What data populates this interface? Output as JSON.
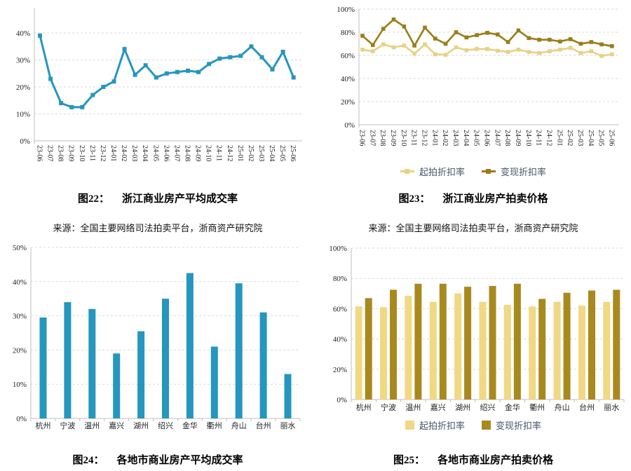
{
  "colors": {
    "teal": "#2596be",
    "light_gold_line": "#e8d183",
    "dark_gold_line": "#9a7d17",
    "light_gold_bar": "#f0d884",
    "dark_gold_bar": "#a8891e",
    "legend_text": "#44546a",
    "gridline": "#d9d9d9",
    "axis_line": "#bfbfbf"
  },
  "captions": {
    "fig22": {
      "label": "图22：",
      "title": "浙江商业房产平均成交率"
    },
    "fig23": {
      "label": "图23：",
      "title": "浙江商业房产拍卖价格"
    },
    "fig24": {
      "label": "图24：",
      "title": "各地市商业房产平均成交率"
    },
    "fig25": {
      "label": "图25：",
      "title": "各地市商业房产拍卖价格"
    }
  },
  "sources": {
    "left": "来源：全国主要网络司法拍卖平台，浙商资产研究院",
    "right": "来源：全国主要网络司法拍卖平台，浙商资产研究院"
  },
  "chart_data": [
    {
      "id": "fig22",
      "type": "line",
      "title": "图22：浙江商业房产平均成交率",
      "categories": [
        "23-06",
        "23-07",
        "23-08",
        "23-09",
        "23-10",
        "23-11",
        "23-12",
        "24-01",
        "24-02",
        "24-03",
        "24-04",
        "24-05",
        "24-06",
        "24-07",
        "24-08",
        "24-09",
        "24-10",
        "24-11",
        "24-12",
        "25-01",
        "25-02",
        "25-03",
        "25-04",
        "25-05",
        "25-06"
      ],
      "series": [
        {
          "name": "平均成交率",
          "color": "#2596be",
          "values": [
            39,
            23,
            14,
            12.5,
            12.5,
            17,
            20,
            22,
            34,
            24.5,
            28,
            23.5,
            25,
            25.5,
            26,
            25.5,
            28.5,
            30.5,
            31,
            31.5,
            35,
            31,
            26.5,
            33,
            23.5
          ]
        }
      ],
      "ylim": [
        0,
        45
      ],
      "yticks": [
        0,
        10,
        20,
        30,
        40
      ],
      "ytick_suffix": "%",
      "grid": "dashed-horizontal",
      "legend": null
    },
    {
      "id": "fig23",
      "type": "line",
      "title": "图23：浙江商业房产拍卖价格",
      "categories": [
        "23-06",
        "23-07",
        "23-08",
        "23-09",
        "23-10",
        "23-11",
        "23-12",
        "24-01",
        "24-02",
        "24-03",
        "24-04",
        "24-05",
        "24-06",
        "24-07",
        "24-08",
        "24-09",
        "24-10",
        "24-11",
        "24-12",
        "25-01",
        "25-02",
        "25-03",
        "25-04",
        "25-05",
        "25-06"
      ],
      "series": [
        {
          "name": "起拍折扣率",
          "color": "#e8d183",
          "values": [
            65,
            63.5,
            69.5,
            67,
            68.5,
            61.5,
            69.5,
            61,
            60.5,
            67,
            64.5,
            65.5,
            65.5,
            64,
            63,
            65,
            63,
            62,
            63.5,
            65,
            66.5,
            62,
            63.5,
            59.5,
            61
          ]
        },
        {
          "name": "变现折扣率",
          "color": "#9a7d17",
          "values": [
            77,
            69,
            83,
            91,
            85,
            68.5,
            84,
            74.5,
            70,
            80,
            75.5,
            77.5,
            79.5,
            78,
            71.5,
            81.5,
            75,
            73.5,
            73.5,
            72,
            74,
            70,
            71.5,
            69.5,
            68
          ]
        }
      ],
      "ylim": [
        0,
        100
      ],
      "yticks": [
        0,
        20,
        40,
        60,
        80,
        100
      ],
      "ytick_suffix": "%",
      "grid": "dashed-horizontal",
      "legend": "bottom"
    },
    {
      "id": "fig24",
      "type": "bar",
      "title": "图24：各地市商业房产平均成交率",
      "categories": [
        "杭州",
        "宁波",
        "温州",
        "嘉兴",
        "湖州",
        "绍兴",
        "金华",
        "衢州",
        "舟山",
        "台州",
        "丽水"
      ],
      "series": [
        {
          "name": "平均成交率",
          "color": "#2596be",
          "values": [
            29.5,
            34,
            32,
            19,
            25.5,
            35,
            42.5,
            21,
            39.5,
            31,
            13
          ]
        }
      ],
      "ylim": [
        0,
        50
      ],
      "yticks": [
        0,
        10,
        20,
        30,
        40,
        50
      ],
      "ytick_suffix": "%",
      "grid": "dashed-horizontal",
      "legend": null
    },
    {
      "id": "fig25",
      "type": "bar",
      "title": "图25：各地市商业房产拍卖价格",
      "categories": [
        "杭州",
        "宁波",
        "温州",
        "嘉兴",
        "湖州",
        "绍兴",
        "金华",
        "衢州",
        "舟山",
        "台州",
        "丽水"
      ],
      "series": [
        {
          "name": "起拍折扣率",
          "color": "#f0d884",
          "values": [
            61.5,
            61,
            68.5,
            64.5,
            70,
            64.5,
            62.5,
            61.5,
            64.5,
            62,
            64.5
          ]
        },
        {
          "name": "变现折扣率",
          "color": "#a8891e",
          "values": [
            67,
            72.5,
            76.5,
            76.5,
            74.5,
            75,
            76.5,
            66.5,
            70.5,
            72,
            72.5
          ]
        }
      ],
      "ylim": [
        0,
        100
      ],
      "yticks": [
        0,
        20,
        40,
        60,
        80,
        100
      ],
      "ytick_suffix": "%",
      "grid": "dashed-horizontal",
      "legend": "bottom"
    }
  ]
}
